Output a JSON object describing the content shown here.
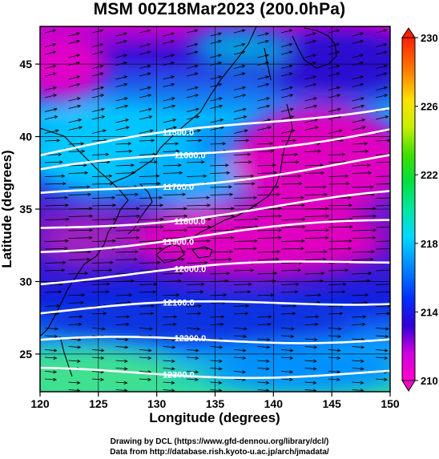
{
  "title": "MSM 00Z18Mar2023 (200.0hPa)",
  "x_axis": {
    "label": "Longitude (degrees)",
    "ticks": [
      "120",
      "125",
      "130",
      "135",
      "140",
      "145",
      "150"
    ]
  },
  "y_axis": {
    "label": "Latitude  (degrees)",
    "ticks": [
      "25",
      "30",
      "35",
      "40",
      "45"
    ]
  },
  "colorbar": {
    "ticks": [
      "210",
      "214",
      "218",
      "222",
      "226",
      "230"
    ],
    "colors": [
      "#ff00cc",
      "#e000e0",
      "#3000d8",
      "#0030ff",
      "#00a0ff",
      "#00e0ff",
      "#00e8a0",
      "#00e040",
      "#60e000",
      "#e0ff00",
      "#ffc000",
      "#ff6000",
      "#ff2000"
    ]
  },
  "contours": [
    {
      "label": "11500.0",
      "lat_at_130": 39.9
    },
    {
      "label": "11600.0",
      "lat_at_130": 38.5
    },
    {
      "label": "11700.0",
      "lat_at_130": 36.7
    },
    {
      "label": "11800.0",
      "lat_at_130": 34.4
    },
    {
      "label": "11900.0",
      "lat_at_130": 32.9
    },
    {
      "label": "12000.0",
      "lat_at_130": 30.6
    },
    {
      "label": "12100.0",
      "lat_at_130": 28.2
    },
    {
      "label": "12200.0",
      "lat_at_130": 25.9
    },
    {
      "label": "12300.0",
      "lat_at_130": 23.7
    }
  ],
  "footer": {
    "line1": "Drawing by DCL (https://www.gfd-dennou.org/library/dcl/)",
    "line2": "Data from http://database.rish.kyoto-u.ac.jp/arch/jmadata/"
  },
  "chart_data": {
    "type": "heatmap",
    "title": "MSM 00Z18Mar2023 (200.0hPa)",
    "xlabel": "Longitude (degrees)",
    "ylabel": "Latitude  (degrees)",
    "xlim": [
      120,
      150
    ],
    "ylim": [
      22.4,
      47.6
    ],
    "color_range": [
      210,
      230
    ],
    "contour_levels": [
      11500,
      11600,
      11700,
      11800,
      11900,
      12000,
      12100,
      12200,
      12300
    ],
    "grid": true
  }
}
